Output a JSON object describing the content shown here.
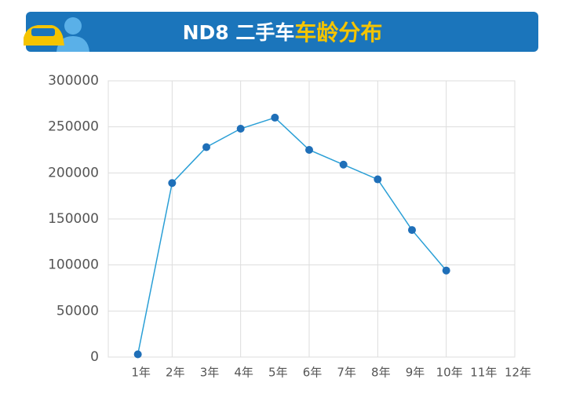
{
  "chart_data": {
    "type": "line",
    "title": "ND8 二手车",
    "title_highlight": "车龄分布",
    "categories": [
      "1年",
      "2年",
      "3年",
      "4年",
      "5年",
      "6年",
      "7年",
      "8年",
      "9年",
      "10年",
      "11年",
      "12年"
    ],
    "series": [
      {
        "color": "#2a9fd6",
        "marker_color": "#1f6fb8",
        "values": [
          3000,
          189000,
          228000,
          248000,
          260000,
          225000,
          209000,
          193000,
          138000,
          94000,
          null,
          null
        ]
      }
    ],
    "ylim": [
      0,
      300000
    ],
    "yticks": [
      0,
      50000,
      100000,
      150000,
      200000,
      250000,
      300000
    ],
    "grid": true
  }
}
